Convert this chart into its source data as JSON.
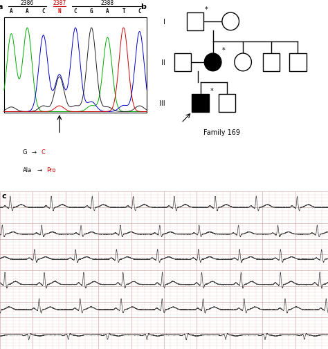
{
  "panel_a_label": "a",
  "panel_b_label": "b",
  "panel_c_label": "c",
  "seq_numbers": [
    "2386",
    "2387",
    "2388"
  ],
  "seq_number_colors": [
    "black",
    "#cc0000",
    "black"
  ],
  "seq_bases": [
    "A",
    "A",
    "C",
    "N",
    "C",
    "G",
    "A",
    "T",
    "C"
  ],
  "seq_base_colors": [
    "black",
    "black",
    "black",
    "#cc0000",
    "black",
    "black",
    "black",
    "black",
    "black"
  ],
  "family_label": "Family 169",
  "bg_color": "#ffffff",
  "ecg_bg": "#f9e8e8",
  "ecg_grid_minor_color": "#e8c8c8",
  "ecg_grid_major_color": "#d8a8a8",
  "ecg_line_color": "#404040",
  "roman_I": "I",
  "roman_II": "II",
  "roman_III": "III"
}
